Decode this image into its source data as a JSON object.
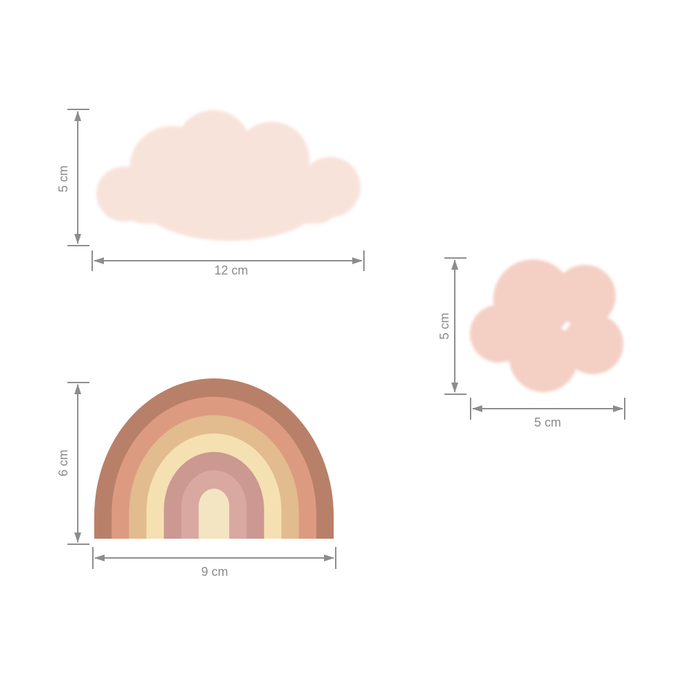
{
  "items": [
    {
      "name": "large cloud",
      "height_label": "5 cm",
      "width_label": "12 cm",
      "color": "#f8e3da"
    },
    {
      "name": "small cloud",
      "height_label": "5 cm",
      "width_label": "5 cm",
      "color": "#f4cfc3"
    },
    {
      "name": "rainbow",
      "height_label": "6 cm",
      "width_label": "9 cm",
      "band_colors": [
        "#b98069",
        "#dc9b80",
        "#e2bb8e",
        "#f5e0b2",
        "#cc9892",
        "#d9a8a0",
        "#f3e5c1"
      ]
    }
  ],
  "dimension_line_color": "#8c8c8c"
}
